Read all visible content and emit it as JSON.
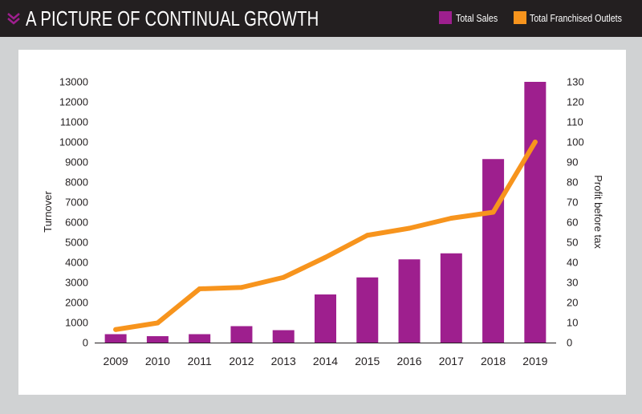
{
  "header": {
    "title": "A PICTURE OF CONTINUAL GROWTH",
    "icon": "chevron-double-down-icon",
    "background": "#231f20",
    "icon_color": "#9e1f8e"
  },
  "colors": {
    "sales": "#9e1f8e",
    "outlets": "#f7941d",
    "page_background": "#d0d2d3",
    "card_background": "#ffffff"
  },
  "chart_data": {
    "type": "bar",
    "title": "",
    "categories": [
      "2009",
      "2010",
      "2011",
      "2012",
      "2013",
      "2014",
      "2015",
      "2016",
      "2017",
      "2018",
      "2019"
    ],
    "series": [
      {
        "name": "Total Sales",
        "type": "bar",
        "axis": "left",
        "color": "#9e1f8e",
        "values": [
          420,
          320,
          420,
          820,
          620,
          2400,
          3250,
          4150,
          4450,
          9150,
          13000
        ]
      },
      {
        "name": "Total Franchised Outlets",
        "type": "line",
        "axis": "right",
        "color": "#f7941d",
        "values": [
          6.5,
          9.8,
          26.8,
          27.5,
          32.5,
          42.5,
          53.5,
          57,
          62,
          65,
          100
        ]
      }
    ],
    "xlabel": "",
    "ylabel": "Turnover",
    "ylabel_right": "Profit before tax",
    "ylim": [
      0,
      13000
    ],
    "ylim_right": [
      0,
      130
    ],
    "yticks": [
      0,
      1000,
      2000,
      3000,
      4000,
      5000,
      6000,
      7000,
      8000,
      9000,
      10000,
      11000,
      12000,
      13000
    ],
    "yticks_right": [
      0,
      10,
      20,
      30,
      40,
      50,
      60,
      70,
      80,
      90,
      100,
      110,
      120,
      130
    ],
    "grid": false,
    "legend_position": "top-right"
  }
}
